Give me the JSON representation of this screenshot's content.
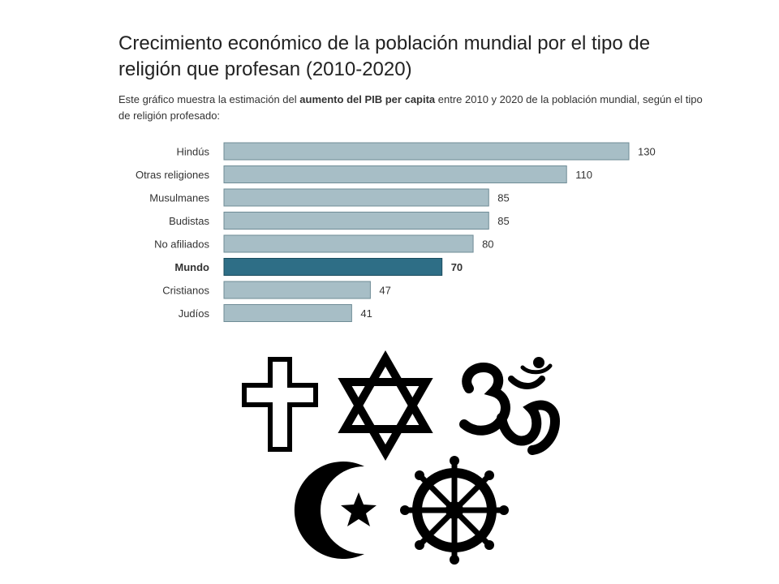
{
  "title": "Crecimiento económico de la población mundial por el tipo de religión que profesan (2010-2020)",
  "subtitle": {
    "part1": "Este gráfico muestra la estimación del ",
    "bold": "aumento del PIB per capita",
    "part2": " entre 2010 y 2020 de la población mundial, según el tipo de religión profesado:"
  },
  "colors": {
    "bar": "#a7bec6",
    "bar_border": "#6f8c96",
    "highlight": "#2e6e86",
    "highlight_border": "#1b4c5e"
  },
  "chart_data": {
    "type": "bar",
    "orientation": "horizontal",
    "title": "Crecimiento económico de la población mundial por el tipo de religión que profesan (2010-2020)",
    "categories": [
      "Hindús",
      "Otras religiones",
      "Musulmanes",
      "Budistas",
      "No afiliados",
      "Mundo",
      "Cristianos",
      "Judíos"
    ],
    "values": [
      130,
      110,
      85,
      85,
      80,
      70,
      47,
      41
    ],
    "highlight": "Mundo",
    "xlim": [
      0,
      130
    ],
    "grid": false
  },
  "symbols": [
    "latin-cross-icon",
    "star-of-david-icon",
    "om-icon",
    "crescent-star-icon",
    "dharma-wheel-icon"
  ]
}
